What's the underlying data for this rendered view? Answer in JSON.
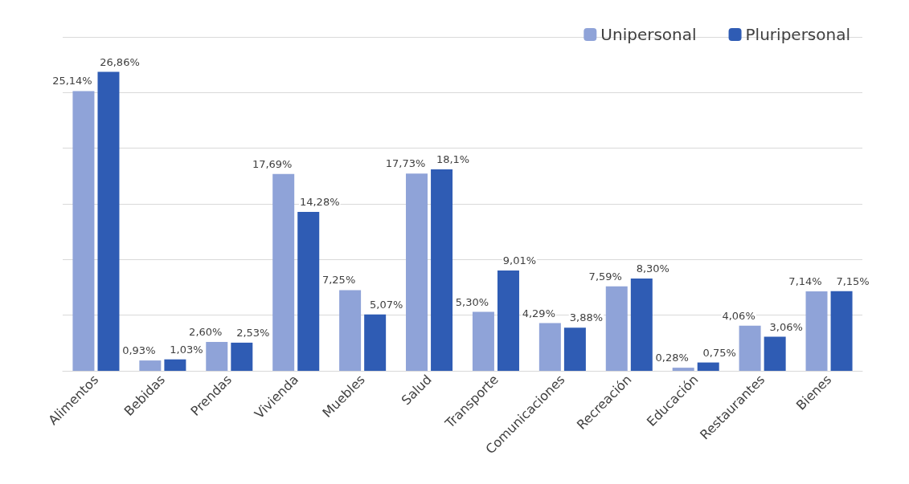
{
  "chart_data": {
    "type": "bar",
    "categories": [
      "Alimentos",
      "Bebidas",
      "Prendas",
      "Vivienda",
      "Muebles",
      "Salud",
      "Transporte",
      "Comunicaciones",
      "Recreación",
      "Educación",
      "Restaurantes",
      "Bienes"
    ],
    "series": [
      {
        "name": "Unipersonal",
        "color": "#8fa3d8",
        "values": [
          25.14,
          0.93,
          2.6,
          17.69,
          7.25,
          17.73,
          5.3,
          4.29,
          7.59,
          0.28,
          4.06,
          7.14
        ],
        "value_labels": [
          "25,14%",
          "0,93%",
          "2,60%",
          "17,69%",
          "7,25%",
          "17,73%",
          "5,30%",
          "4,29%",
          "7,59%",
          "0,28%",
          "4,06%",
          "7,14%"
        ]
      },
      {
        "name": "Pluripersonal",
        "color": "#2f5cb4",
        "values": [
          26.86,
          1.03,
          2.53,
          14.28,
          5.07,
          18.1,
          9.01,
          3.88,
          8.3,
          0.75,
          3.06,
          7.15
        ],
        "value_labels": [
          "26,86%",
          "1,03%",
          "2,53%",
          "14,28%",
          "5,07%",
          "18,1%",
          "9,01%",
          "3,88%",
          "8,30%",
          "0,75%",
          "3,06%",
          "7,15%"
        ]
      }
    ],
    "ylim": [
      0,
      30
    ],
    "yticks": [
      {
        "value": 0,
        "label": null
      },
      {
        "value": 5,
        "label": null
      },
      {
        "value": 10,
        "label": null
      },
      {
        "value": 15,
        "label": null
      },
      {
        "value": 20,
        "label": null
      },
      {
        "value": 25,
        "label": null
      },
      {
        "value": 30,
        "label": null
      }
    ],
    "tick_labels": "x",
    "grid": "y",
    "legend": "top right"
  }
}
